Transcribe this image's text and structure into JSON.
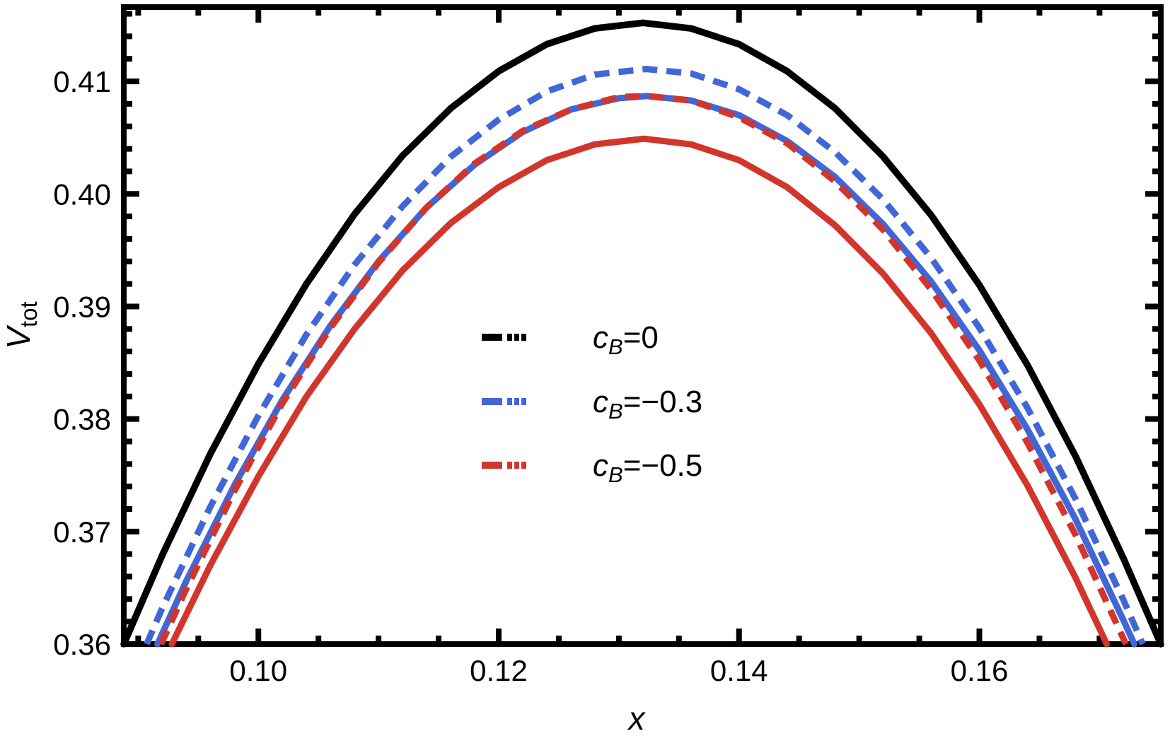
{
  "figure": {
    "background": "#ffffff"
  },
  "chart_data": {
    "type": "line",
    "title": "",
    "xlabel": "x",
    "ylabel": {
      "main": "V",
      "sub": "tot"
    },
    "xlim": [
      0.0888,
      0.1751
    ],
    "ylim": [
      0.36,
      0.4166
    ],
    "grid": false,
    "frame": true,
    "legend_position": "center-inside",
    "colors": {
      "frame": "#000000",
      "black": "#000000",
      "blue": "#4166d8",
      "red": "#d2352c"
    },
    "x_ticks": {
      "major": [
        0.1,
        0.12,
        0.14,
        0.16
      ],
      "major_labels": [
        "0.10",
        "0.12",
        "0.14",
        "0.16"
      ],
      "minor": [
        0.09,
        0.095,
        0.105,
        0.11,
        0.115,
        0.125,
        0.13,
        0.135,
        0.145,
        0.15,
        0.155,
        0.165,
        0.17
      ]
    },
    "y_ticks": {
      "major": [
        0.36,
        0.37,
        0.38,
        0.39,
        0.4,
        0.41
      ],
      "major_labels": [
        "0.36",
        "0.37",
        "0.38",
        "0.39",
        "0.40",
        "0.41"
      ],
      "minor": [
        0.362,
        0.364,
        0.366,
        0.368,
        0.372,
        0.374,
        0.376,
        0.378,
        0.382,
        0.384,
        0.386,
        0.388,
        0.392,
        0.394,
        0.396,
        0.398,
        0.402,
        0.404,
        0.406,
        0.408,
        0.412,
        0.414,
        0.416
      ]
    },
    "series": [
      {
        "name": "cB=0 solid",
        "color": "#000000",
        "style": "solid",
        "width": 9.5,
        "points": [
          [
            0.0888,
            0.36
          ],
          [
            0.092,
            0.3679
          ],
          [
            0.096,
            0.3769
          ],
          [
            0.1,
            0.3849
          ],
          [
            0.104,
            0.392
          ],
          [
            0.108,
            0.3982
          ],
          [
            0.112,
            0.4034
          ],
          [
            0.116,
            0.4076
          ],
          [
            0.12,
            0.4109
          ],
          [
            0.124,
            0.4133
          ],
          [
            0.128,
            0.4147
          ],
          [
            0.132,
            0.4152
          ],
          [
            0.136,
            0.4147
          ],
          [
            0.14,
            0.4133
          ],
          [
            0.144,
            0.4109
          ],
          [
            0.148,
            0.4076
          ],
          [
            0.152,
            0.4033
          ],
          [
            0.156,
            0.3981
          ],
          [
            0.16,
            0.3919
          ],
          [
            0.164,
            0.3848
          ],
          [
            0.168,
            0.3767
          ],
          [
            0.172,
            0.3676
          ],
          [
            0.1751,
            0.36
          ]
        ]
      },
      {
        "name": "cB=-0.3 dashed",
        "color": "#4166d8",
        "style": "dashed",
        "width": 9,
        "points": [
          [
            0.0907,
            0.36
          ],
          [
            0.092,
            0.3632
          ],
          [
            0.096,
            0.3722
          ],
          [
            0.1,
            0.3803
          ],
          [
            0.104,
            0.3875
          ],
          [
            0.108,
            0.3937
          ],
          [
            0.112,
            0.3989
          ],
          [
            0.116,
            0.4033
          ],
          [
            0.12,
            0.4066
          ],
          [
            0.124,
            0.4091
          ],
          [
            0.128,
            0.4106
          ],
          [
            0.1323,
            0.4111
          ],
          [
            0.136,
            0.4107
          ],
          [
            0.14,
            0.4093
          ],
          [
            0.144,
            0.407
          ],
          [
            0.148,
            0.4037
          ],
          [
            0.152,
            0.3995
          ],
          [
            0.156,
            0.3943
          ],
          [
            0.16,
            0.3881
          ],
          [
            0.164,
            0.381
          ],
          [
            0.168,
            0.3729
          ],
          [
            0.172,
            0.3639
          ],
          [
            0.1736,
            0.36
          ]
        ]
      },
      {
        "name": "cB=-0.3 solid",
        "color": "#4166d8",
        "style": "solid",
        "width": 9,
        "points": [
          [
            0.0916,
            0.36
          ],
          [
            0.094,
            0.3656
          ],
          [
            0.098,
            0.3741
          ],
          [
            0.102,
            0.3817
          ],
          [
            0.106,
            0.3883
          ],
          [
            0.11,
            0.394
          ],
          [
            0.114,
            0.3988
          ],
          [
            0.118,
            0.4026
          ],
          [
            0.122,
            0.4055
          ],
          [
            0.126,
            0.4075
          ],
          [
            0.13,
            0.4085
          ],
          [
            0.1324,
            0.4087
          ],
          [
            0.136,
            0.4083
          ],
          [
            0.14,
            0.407
          ],
          [
            0.144,
            0.4047
          ],
          [
            0.148,
            0.4015
          ],
          [
            0.152,
            0.3973
          ],
          [
            0.156,
            0.3922
          ],
          [
            0.16,
            0.3861
          ],
          [
            0.164,
            0.3791
          ],
          [
            0.168,
            0.3711
          ],
          [
            0.172,
            0.3621
          ],
          [
            0.1729,
            0.36
          ]
        ]
      },
      {
        "name": "cB=-0.5 dashed",
        "color": "#d2352c",
        "style": "dashed",
        "width": 9,
        "points": [
          [
            0.0919,
            0.36
          ],
          [
            0.094,
            0.3649
          ],
          [
            0.098,
            0.3736
          ],
          [
            0.102,
            0.3814
          ],
          [
            0.106,
            0.3881
          ],
          [
            0.11,
            0.3939
          ],
          [
            0.114,
            0.3988
          ],
          [
            0.118,
            0.4027
          ],
          [
            0.122,
            0.4056
          ],
          [
            0.126,
            0.4075
          ],
          [
            0.13,
            0.4086
          ],
          [
            0.1322,
            0.4087
          ],
          [
            0.136,
            0.4083
          ],
          [
            0.14,
            0.4068
          ],
          [
            0.144,
            0.4045
          ],
          [
            0.148,
            0.4011
          ],
          [
            0.152,
            0.3968
          ],
          [
            0.156,
            0.3915
          ],
          [
            0.16,
            0.3852
          ],
          [
            0.164,
            0.3779
          ],
          [
            0.168,
            0.3697
          ],
          [
            0.1722,
            0.36
          ]
        ]
      },
      {
        "name": "cB=-0.5 solid",
        "color": "#d2352c",
        "style": "solid",
        "width": 9,
        "points": [
          [
            0.0928,
            0.36
          ],
          [
            0.096,
            0.367
          ],
          [
            0.1,
            0.3749
          ],
          [
            0.104,
            0.382
          ],
          [
            0.108,
            0.388
          ],
          [
            0.112,
            0.3932
          ],
          [
            0.116,
            0.3974
          ],
          [
            0.12,
            0.4006
          ],
          [
            0.124,
            0.403
          ],
          [
            0.128,
            0.4044
          ],
          [
            0.1321,
            0.4049
          ],
          [
            0.136,
            0.4044
          ],
          [
            0.14,
            0.403
          ],
          [
            0.144,
            0.4006
          ],
          [
            0.148,
            0.3972
          ],
          [
            0.152,
            0.3929
          ],
          [
            0.156,
            0.3876
          ],
          [
            0.16,
            0.3813
          ],
          [
            0.164,
            0.3741
          ],
          [
            0.168,
            0.3659
          ],
          [
            0.1706,
            0.36
          ]
        ]
      }
    ],
    "legend": {
      "entries": [
        {
          "color": "#000000",
          "var": "c",
          "sub": "B",
          "value": "=0"
        },
        {
          "color": "#4166d8",
          "var": "c",
          "sub": "B",
          "value": "=−0.3"
        },
        {
          "color": "#d2352c",
          "var": "c",
          "sub": "B",
          "value": "=−0.5"
        }
      ]
    }
  }
}
